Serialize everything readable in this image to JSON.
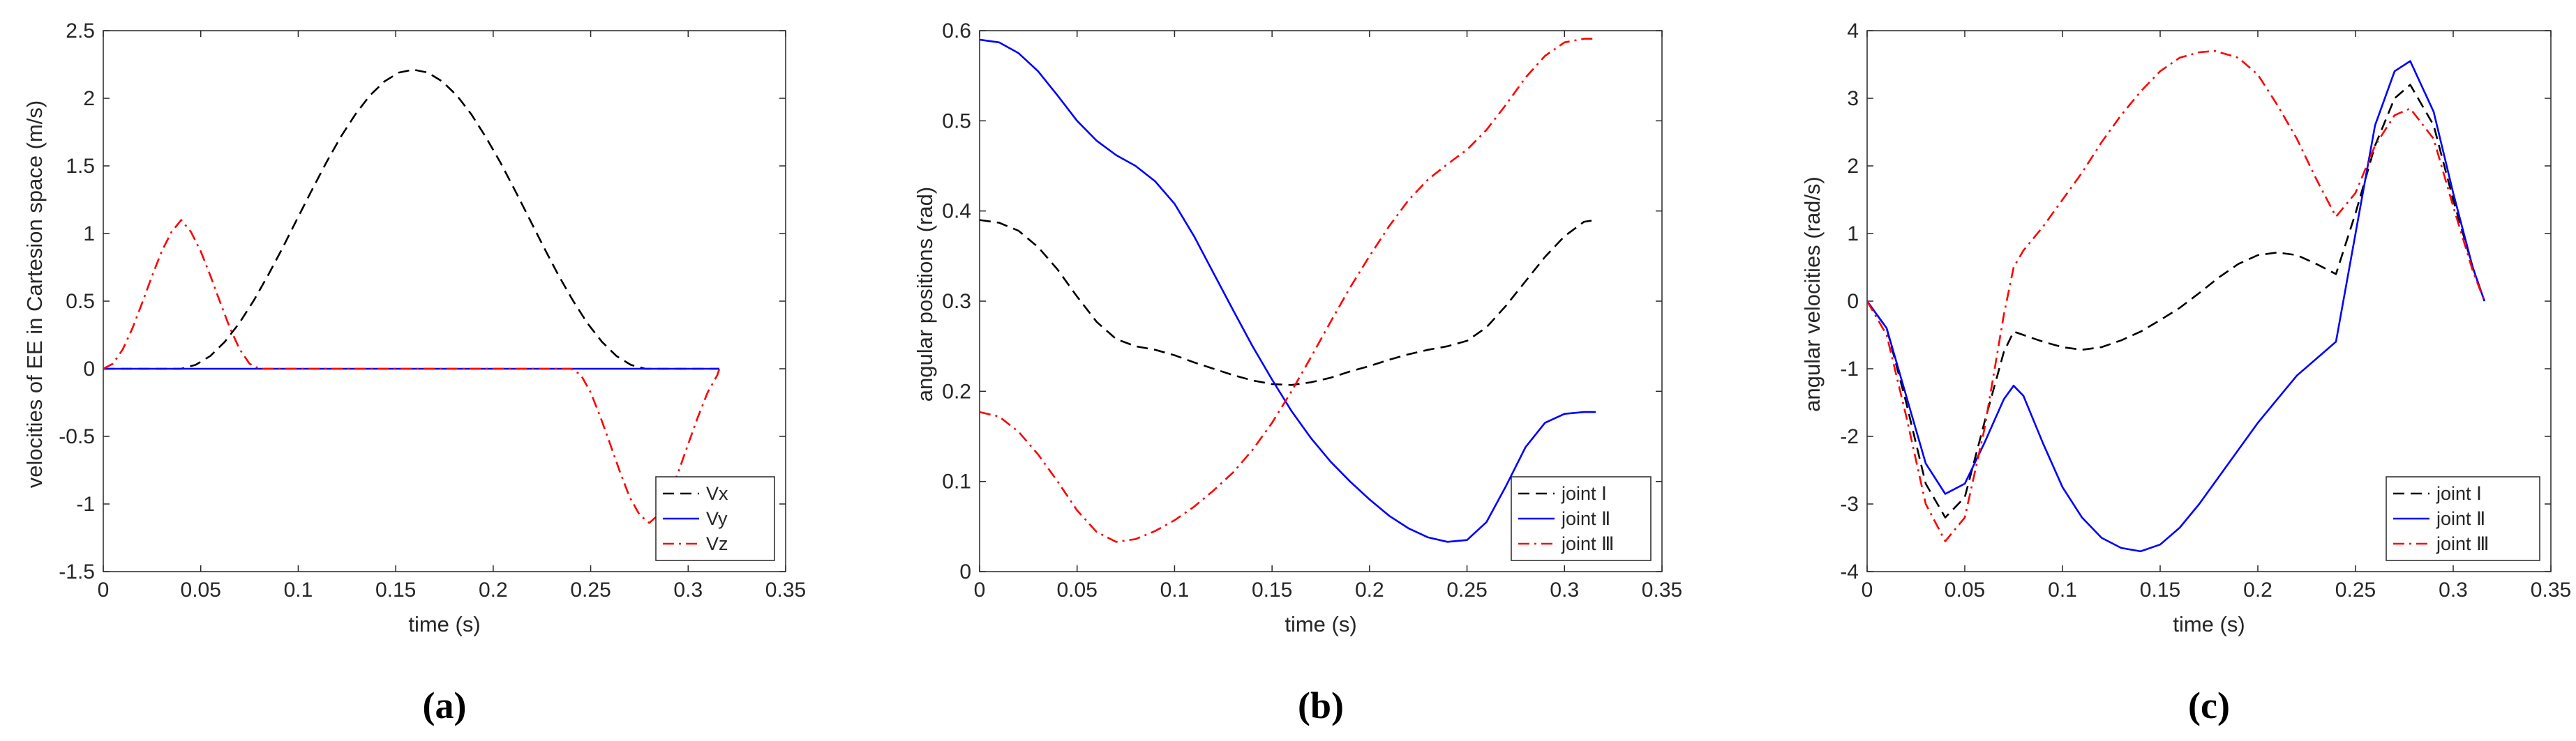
{
  "chart_data": [
    {
      "type": "line",
      "panel_label": "(a)",
      "xlabel": "time (s)",
      "ylabel": "velocities of EE in Cartesion space (m/s)",
      "xlim": [
        0,
        0.35
      ],
      "ylim": [
        -1.5,
        2.5
      ],
      "xticks": [
        0,
        0.05,
        0.1,
        0.15,
        0.2,
        0.25,
        0.3,
        0.35
      ],
      "xtick_labels": [
        "0",
        "0.05",
        "0.1",
        "0.15",
        "0.2",
        "0.25",
        "0.3",
        "0.35"
      ],
      "yticks": [
        -1.5,
        -1,
        -0.5,
        0,
        0.5,
        1,
        1.5,
        2,
        2.5
      ],
      "ytick_labels": [
        "-1.5",
        "-1",
        "-0.5",
        "0",
        "0.5",
        "1",
        "1.5",
        "2",
        "2.5"
      ],
      "legend_position": "bottom-right",
      "series": [
        {
          "name": "Vx",
          "color": "#000000",
          "style": "dashed",
          "x": [
            0,
            0.04,
            0.0474,
            0.0549,
            0.0623,
            0.0698,
            0.0772,
            0.0846,
            0.0921,
            0.0995,
            0.107,
            0.1144,
            0.1218,
            0.1293,
            0.1367,
            0.1442,
            0.1516,
            0.159,
            0.1665,
            0.1739,
            0.1814,
            0.1888,
            0.1962,
            0.2037,
            0.2111,
            0.2186,
            0.226,
            0.2334,
            0.2409,
            0.2483,
            0.2558,
            0.2632,
            0.2706,
            0.278,
            0.316
          ],
          "y": [
            0,
            0,
            0.0288,
            0.0944,
            0.1989,
            0.3375,
            0.5044,
            0.6934,
            0.8975,
            1.109,
            1.321,
            1.525,
            1.714,
            1.881,
            2.02,
            2.124,
            2.19,
            2.212,
            2.19,
            2.124,
            2.02,
            1.881,
            1.714,
            1.525,
            1.321,
            1.109,
            0.8975,
            0.6934,
            0.5044,
            0.3375,
            0.1989,
            0.0944,
            0.0288,
            0,
            0
          ]
        },
        {
          "name": "Vy",
          "color": "#0000ff",
          "style": "solid",
          "x": [
            0,
            0.316
          ],
          "y": [
            0,
            0
          ]
        },
        {
          "name": "Vz",
          "color": "#ff0000",
          "style": "dashdot",
          "x": [
            0,
            0.005,
            0.01,
            0.015,
            0.02,
            0.025,
            0.03,
            0.035,
            0.04,
            0.045,
            0.05,
            0.055,
            0.06,
            0.065,
            0.07,
            0.075,
            0.08,
            0.24,
            0.245,
            0.25,
            0.255,
            0.26,
            0.265,
            0.27,
            0.275,
            0.28,
            0.285,
            0.29,
            0.295,
            0.3,
            0.305,
            0.31,
            0.315,
            0.316
          ],
          "y": [
            0,
            0.0376,
            0.1435,
            0.3007,
            0.4893,
            0.6857,
            0.8686,
            1.0121,
            1.1,
            1.0121,
            0.8686,
            0.6857,
            0.4893,
            0.3007,
            0.1435,
            0.0376,
            0,
            0,
            -0.046,
            -0.175,
            -0.356,
            -0.557,
            -0.762,
            -0.95,
            -1.078,
            -1.14,
            -1.078,
            -0.95,
            -0.762,
            -0.557,
            -0.356,
            -0.175,
            -0.046,
            0
          ]
        }
      ]
    },
    {
      "type": "line",
      "panel_label": "(b)",
      "xlabel": "time (s)",
      "ylabel": "angular positions (rad)",
      "xlim": [
        0,
        0.35
      ],
      "ylim": [
        0,
        0.6
      ],
      "xticks": [
        0,
        0.05,
        0.1,
        0.15,
        0.2,
        0.25,
        0.3,
        0.35
      ],
      "xtick_labels": [
        "0",
        "0.05",
        "0.1",
        "0.15",
        "0.2",
        "0.25",
        "0.3",
        "0.35"
      ],
      "yticks": [
        0,
        0.1,
        0.2,
        0.3,
        0.4,
        0.5,
        0.6
      ],
      "ytick_labels": [
        "0",
        "0.1",
        "0.2",
        "0.3",
        "0.4",
        "0.5",
        "0.6"
      ],
      "legend_position": "bottom-right",
      "series": [
        {
          "name": "joint Ⅰ",
          "color": "#000000",
          "style": "dashed",
          "x": [
            0,
            0.01,
            0.02,
            0.03,
            0.04,
            0.05,
            0.06,
            0.07,
            0.08,
            0.09,
            0.1,
            0.11,
            0.12,
            0.13,
            0.14,
            0.15,
            0.16,
            0.17,
            0.18,
            0.19,
            0.2,
            0.21,
            0.22,
            0.23,
            0.24,
            0.25,
            0.26,
            0.27,
            0.28,
            0.29,
            0.3,
            0.31,
            0.316
          ],
          "y": [
            0.39,
            0.387,
            0.378,
            0.36,
            0.335,
            0.305,
            0.277,
            0.258,
            0.25,
            0.246,
            0.24,
            0.232,
            0.225,
            0.218,
            0.212,
            0.208,
            0.207,
            0.21,
            0.215,
            0.222,
            0.228,
            0.235,
            0.241,
            0.246,
            0.25,
            0.256,
            0.271,
            0.295,
            0.322,
            0.349,
            0.372,
            0.388,
            0.39
          ]
        },
        {
          "name": "joint Ⅱ",
          "color": "#0000ff",
          "style": "solid",
          "x": [
            0,
            0.01,
            0.02,
            0.03,
            0.04,
            0.05,
            0.06,
            0.07,
            0.08,
            0.09,
            0.1,
            0.11,
            0.12,
            0.13,
            0.14,
            0.15,
            0.16,
            0.17,
            0.18,
            0.19,
            0.2,
            0.21,
            0.22,
            0.23,
            0.24,
            0.25,
            0.26,
            0.27,
            0.28,
            0.29,
            0.3,
            0.31,
            0.316
          ],
          "y": [
            0.59,
            0.587,
            0.575,
            0.555,
            0.528,
            0.5,
            0.478,
            0.462,
            0.45,
            0.433,
            0.408,
            0.372,
            0.331,
            0.29,
            0.25,
            0.213,
            0.178,
            0.148,
            0.122,
            0.1,
            0.08,
            0.062,
            0.048,
            0.038,
            0.033,
            0.035,
            0.055,
            0.095,
            0.138,
            0.165,
            0.175,
            0.177,
            0.177
          ]
        },
        {
          "name": "joint Ⅲ",
          "color": "#ff0000",
          "style": "dashdot",
          "x": [
            0,
            0.01,
            0.02,
            0.03,
            0.04,
            0.05,
            0.06,
            0.07,
            0.08,
            0.09,
            0.1,
            0.11,
            0.12,
            0.13,
            0.14,
            0.15,
            0.16,
            0.17,
            0.18,
            0.19,
            0.2,
            0.21,
            0.22,
            0.23,
            0.24,
            0.25,
            0.26,
            0.27,
            0.28,
            0.29,
            0.3,
            0.31,
            0.316
          ],
          "y": [
            0.177,
            0.172,
            0.155,
            0.13,
            0.1,
            0.068,
            0.044,
            0.033,
            0.036,
            0.045,
            0.057,
            0.072,
            0.09,
            0.11,
            0.135,
            0.165,
            0.2,
            0.238,
            0.277,
            0.315,
            0.35,
            0.383,
            0.412,
            0.435,
            0.452,
            0.468,
            0.49,
            0.518,
            0.548,
            0.572,
            0.587,
            0.591,
            0.591
          ]
        }
      ]
    },
    {
      "type": "line",
      "panel_label": "(c)",
      "xlabel": "time (s)",
      "ylabel": "angular velocities (rad/s)",
      "xlim": [
        0,
        0.35
      ],
      "ylim": [
        -4,
        4
      ],
      "xticks": [
        0,
        0.05,
        0.1,
        0.15,
        0.2,
        0.25,
        0.3,
        0.35
      ],
      "xtick_labels": [
        "0",
        "0.05",
        "0.1",
        "0.15",
        "0.2",
        "0.25",
        "0.3",
        "0.35"
      ],
      "yticks": [
        -4,
        -3,
        -2,
        -1,
        0,
        1,
        2,
        3,
        4
      ],
      "ytick_labels": [
        "-4",
        "-3",
        "-2",
        "-1",
        "0",
        "1",
        "2",
        "3",
        "4"
      ],
      "legend_position": "bottom-right",
      "series": [
        {
          "name": "joint Ⅰ",
          "color": "#000000",
          "style": "dashed",
          "x": [
            0,
            0.01,
            0.02,
            0.03,
            0.04,
            0.05,
            0.06,
            0.07,
            0.075,
            0.08,
            0.09,
            0.1,
            0.11,
            0.12,
            0.13,
            0.14,
            0.15,
            0.16,
            0.17,
            0.18,
            0.19,
            0.2,
            0.21,
            0.22,
            0.23,
            0.24,
            0.25,
            0.26,
            0.27,
            0.278,
            0.29,
            0.3,
            0.31,
            0.316
          ],
          "y": [
            0,
            -0.4,
            -1.5,
            -2.7,
            -3.2,
            -2.9,
            -1.8,
            -0.75,
            -0.45,
            -0.5,
            -0.6,
            -0.68,
            -0.72,
            -0.68,
            -0.58,
            -0.45,
            -0.28,
            -0.1,
            0.12,
            0.35,
            0.55,
            0.68,
            0.72,
            0.68,
            0.55,
            0.4,
            1.3,
            2.3,
            3.0,
            3.2,
            2.6,
            1.5,
            0.5,
            0
          ]
        },
        {
          "name": "joint Ⅱ",
          "color": "#0000ff",
          "style": "solid",
          "x": [
            0,
            0.01,
            0.02,
            0.03,
            0.04,
            0.05,
            0.06,
            0.07,
            0.075,
            0.08,
            0.09,
            0.1,
            0.11,
            0.12,
            0.13,
            0.14,
            0.15,
            0.16,
            0.17,
            0.18,
            0.19,
            0.2,
            0.21,
            0.22,
            0.23,
            0.24,
            0.25,
            0.26,
            0.27,
            0.278,
            0.29,
            0.3,
            0.31,
            0.316
          ],
          "y": [
            0,
            -0.4,
            -1.4,
            -2.4,
            -2.85,
            -2.7,
            -2.1,
            -1.45,
            -1.25,
            -1.4,
            -2.1,
            -2.75,
            -3.2,
            -3.5,
            -3.65,
            -3.7,
            -3.6,
            -3.35,
            -3.0,
            -2.6,
            -2.2,
            -1.8,
            -1.45,
            -1.1,
            -0.85,
            -0.6,
            1.0,
            2.6,
            3.4,
            3.55,
            2.8,
            1.6,
            0.5,
            0
          ]
        },
        {
          "name": "joint Ⅲ",
          "color": "#ff0000",
          "style": "dashdot",
          "x": [
            0,
            0.01,
            0.02,
            0.03,
            0.04,
            0.05,
            0.06,
            0.07,
            0.075,
            0.08,
            0.09,
            0.1,
            0.11,
            0.12,
            0.13,
            0.14,
            0.15,
            0.16,
            0.17,
            0.178,
            0.19,
            0.2,
            0.21,
            0.22,
            0.23,
            0.24,
            0.25,
            0.26,
            0.27,
            0.278,
            0.29,
            0.3,
            0.31,
            0.316
          ],
          "y": [
            0,
            -0.5,
            -1.7,
            -3.0,
            -3.55,
            -3.2,
            -1.9,
            -0.2,
            0.5,
            0.75,
            1.1,
            1.5,
            1.9,
            2.35,
            2.75,
            3.1,
            3.4,
            3.6,
            3.68,
            3.7,
            3.6,
            3.35,
            2.9,
            2.4,
            1.8,
            1.25,
            1.6,
            2.3,
            2.75,
            2.85,
            2.4,
            1.4,
            0.45,
            0
          ]
        }
      ]
    }
  ],
  "captions": [
    "(a)",
    "(b)",
    "(c)"
  ]
}
